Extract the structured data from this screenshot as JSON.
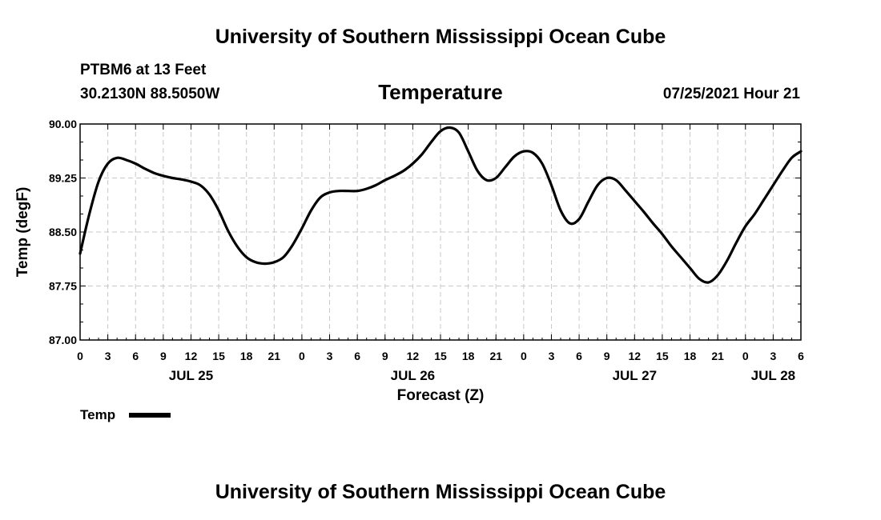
{
  "header": {
    "title": "University of Southern Mississippi Ocean Cube",
    "station": "PTBM6 at 13 Feet",
    "coords": "30.2130N  88.5050W",
    "timestamp": "07/25/2021 Hour 21"
  },
  "footer": {
    "title": "University of Southern Mississippi Ocean Cube"
  },
  "legend": {
    "label": "Temp"
  },
  "colors": {
    "line": "#000000",
    "grid": "#c8c8c8",
    "background": "#ffffff"
  },
  "chart_data": {
    "type": "line",
    "title": "Temperature",
    "xlabel": "Forecast (Z)",
    "ylabel": "Temp (degF)",
    "xlim": [
      0,
      78
    ],
    "ylim": [
      87.0,
      90.0
    ],
    "yticks": [
      "87.00",
      "87.75",
      "88.50",
      "89.25",
      "90.00"
    ],
    "ytick_values": [
      87.0,
      87.75,
      88.5,
      89.25,
      90.0
    ],
    "xticks": [
      {
        "h": 0,
        "label": "0"
      },
      {
        "h": 3,
        "label": "3"
      },
      {
        "h": 6,
        "label": "6"
      },
      {
        "h": 9,
        "label": "9"
      },
      {
        "h": 12,
        "label": "12"
      },
      {
        "h": 15,
        "label": "15"
      },
      {
        "h": 18,
        "label": "18"
      },
      {
        "h": 21,
        "label": "21"
      },
      {
        "h": 24,
        "label": "0"
      },
      {
        "h": 27,
        "label": "3"
      },
      {
        "h": 30,
        "label": "6"
      },
      {
        "h": 33,
        "label": "9"
      },
      {
        "h": 36,
        "label": "12"
      },
      {
        "h": 39,
        "label": "15"
      },
      {
        "h": 42,
        "label": "18"
      },
      {
        "h": 45,
        "label": "21"
      },
      {
        "h": 48,
        "label": "0"
      },
      {
        "h": 51,
        "label": "3"
      },
      {
        "h": 54,
        "label": "6"
      },
      {
        "h": 57,
        "label": "9"
      },
      {
        "h": 60,
        "label": "12"
      },
      {
        "h": 63,
        "label": "15"
      },
      {
        "h": 66,
        "label": "18"
      },
      {
        "h": 69,
        "label": "21"
      },
      {
        "h": 72,
        "label": "0"
      },
      {
        "h": 75,
        "label": "3"
      },
      {
        "h": 78,
        "label": "6"
      }
    ],
    "date_labels": [
      {
        "h": 12,
        "label": "JUL 25"
      },
      {
        "h": 36,
        "label": "JUL 26"
      },
      {
        "h": 60,
        "label": "JUL 27"
      },
      {
        "h": 75,
        "label": "JUL 28"
      }
    ],
    "series": [
      {
        "name": "Temp",
        "x": [
          0,
          1,
          2,
          3,
          4,
          5,
          6,
          7,
          8,
          9,
          10,
          11,
          12,
          13,
          14,
          15,
          16,
          17,
          18,
          19,
          20,
          21,
          22,
          23,
          24,
          25,
          26,
          27,
          28,
          29,
          30,
          31,
          32,
          33,
          34,
          35,
          36,
          37,
          38,
          39,
          40,
          41,
          42,
          43,
          44,
          45,
          46,
          47,
          48,
          49,
          50,
          51,
          52,
          53,
          54,
          55,
          56,
          57,
          58,
          59,
          60,
          61,
          62,
          63,
          64,
          65,
          66,
          67,
          68,
          69,
          70,
          71,
          72,
          73,
          74,
          75,
          76,
          77,
          78
        ],
        "values": [
          88.2,
          88.75,
          89.2,
          89.45,
          89.53,
          89.5,
          89.45,
          89.38,
          89.32,
          89.28,
          89.25,
          89.23,
          89.2,
          89.15,
          89.02,
          88.8,
          88.52,
          88.3,
          88.15,
          88.08,
          88.06,
          88.08,
          88.15,
          88.32,
          88.55,
          88.8,
          88.98,
          89.05,
          89.07,
          89.07,
          89.07,
          89.1,
          89.15,
          89.22,
          89.28,
          89.35,
          89.45,
          89.58,
          89.75,
          89.9,
          89.95,
          89.88,
          89.62,
          89.35,
          89.22,
          89.25,
          89.4,
          89.55,
          89.62,
          89.6,
          89.45,
          89.15,
          88.8,
          88.62,
          88.68,
          88.92,
          89.15,
          89.25,
          89.22,
          89.08,
          88.93,
          88.78,
          88.62,
          88.47,
          88.3,
          88.15,
          88.0,
          87.85,
          87.8,
          87.9,
          88.1,
          88.35,
          88.58,
          88.75,
          88.95,
          89.15,
          89.35,
          89.53,
          89.62
        ]
      }
    ]
  }
}
